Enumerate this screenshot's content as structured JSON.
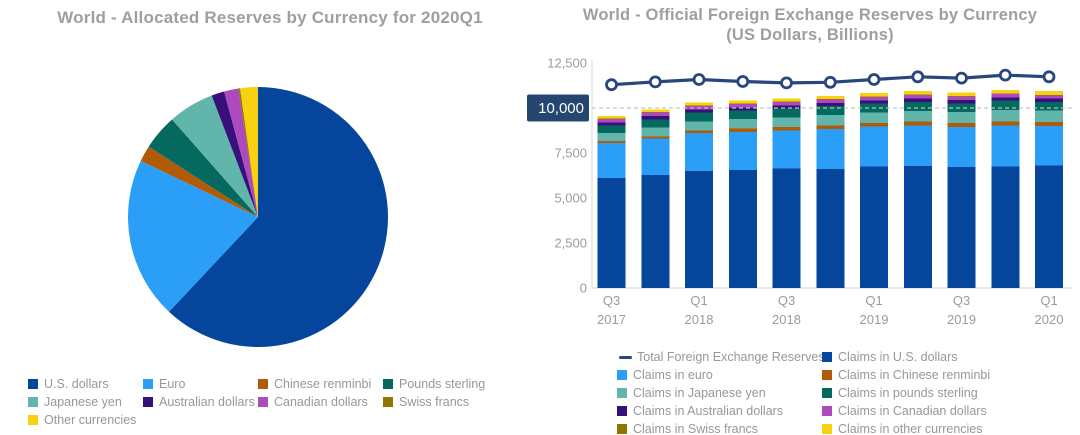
{
  "colors": {
    "title_gray": "#9aa0a4",
    "text_gray": "#95989b",
    "axis_text_gray": "#9b9b9b",
    "axis_line_gray": "#d9d9d9",
    "gridline_gray": "#c4c4c4",
    "badge_navy": "#24466f",
    "line_navy": "#27477e"
  },
  "left_chart": {
    "title": "World - Allocated Reserves by Currency for 2020Q1",
    "legend": [
      {
        "label": "U.S. dollars",
        "color": "#05459b"
      },
      {
        "label": "Euro",
        "color": "#2b9ff8"
      },
      {
        "label": "Chinese renminbi",
        "color": "#b15b08"
      },
      {
        "label": "Pounds sterling",
        "color": "#046a60"
      },
      {
        "label": "Japanese yen",
        "color": "#62b5aa"
      },
      {
        "label": "Australian dollars",
        "color": "#38107c"
      },
      {
        "label": "Canadian dollars",
        "color": "#ad4bbc"
      },
      {
        "label": "Swiss francs",
        "color": "#8f7700"
      },
      {
        "label": "Other currencies",
        "color": "#f8d20e"
      }
    ]
  },
  "right_chart": {
    "title_line1": "World - Official Foreign Exchange Reserves by Currency",
    "title_line2": "(US Dollars, Billions)",
    "y_axis": {
      "tick_labels": [
        "0",
        "2,500",
        "5,000",
        "7,500",
        "10,000",
        "12,500"
      ],
      "highlighted_label": "10,000"
    },
    "x_axis": {
      "tick_labels": [
        [
          "Q3",
          "2017"
        ],
        [
          "Q1",
          "2018"
        ],
        [
          "Q3",
          "2018"
        ],
        [
          "Q1",
          "2019"
        ],
        [
          "Q3",
          "2019"
        ],
        [
          "Q1",
          "2020"
        ]
      ],
      "tick_indices": [
        0,
        2,
        4,
        6,
        8,
        10
      ]
    },
    "legend_col1": [
      {
        "label": "Total Foreign Exchange Reserves",
        "color": "#27477e",
        "swatch": "line"
      },
      {
        "label": "Claims in euro",
        "color": "#2b9ff8",
        "swatch": "box"
      },
      {
        "label": "Claims in Japanese yen",
        "color": "#62b5aa",
        "swatch": "box"
      },
      {
        "label": "Claims in Australian dollars",
        "color": "#38107c",
        "swatch": "box"
      },
      {
        "label": "Claims in Swiss francs",
        "color": "#8f7700",
        "swatch": "box"
      }
    ],
    "legend_col2": [
      {
        "label": "Claims in U.S. dollars",
        "color": "#05459b",
        "swatch": "box"
      },
      {
        "label": "Claims in Chinese renminbi",
        "color": "#b15b08",
        "swatch": "box"
      },
      {
        "label": "Claims in pounds sterling",
        "color": "#046a60",
        "swatch": "box"
      },
      {
        "label": "Claims in Canadian dollars",
        "color": "#ad4bbc",
        "swatch": "box"
      },
      {
        "label": "Claims in other currencies",
        "color": "#f8d20e",
        "swatch": "box"
      }
    ]
  },
  "chart_data": [
    {
      "type": "pie",
      "title": "World - Allocated Reserves by Currency for 2020Q1",
      "direction": "clockwise",
      "start_angle": "top",
      "slices": [
        {
          "label": "U.S. dollars",
          "value": 62.0,
          "color": "#05459b"
        },
        {
          "label": "Euro",
          "value": 20.1,
          "color": "#2b9ff8"
        },
        {
          "label": "Chinese renminbi",
          "value": 2.0,
          "color": "#b15b08"
        },
        {
          "label": "Pounds sterling",
          "value": 4.4,
          "color": "#046a60"
        },
        {
          "label": "Japanese yen",
          "value": 5.7,
          "color": "#62b5aa"
        },
        {
          "label": "Australian dollars",
          "value": 1.6,
          "color": "#38107c"
        },
        {
          "label": "Canadian dollars",
          "value": 1.8,
          "color": "#ad4bbc"
        },
        {
          "label": "Swiss francs",
          "value": 0.2,
          "color": "#8f7700"
        },
        {
          "label": "Other currencies",
          "value": 2.2,
          "color": "#f8d20e"
        }
      ]
    },
    {
      "type": "bar",
      "subtype": "stacked-with-line",
      "title": "World - Official Foreign Exchange Reserves by Currency (US Dollars, Billions)",
      "categories": [
        "2017 Q3",
        "2017 Q4",
        "2018 Q1",
        "2018 Q2",
        "2018 Q3",
        "2018 Q4",
        "2019 Q1",
        "2019 Q2",
        "2019 Q3",
        "2019 Q4",
        "2020 Q1"
      ],
      "ylim": [
        0,
        12500
      ],
      "yticks": [
        0,
        2500,
        5000,
        7500,
        10000,
        12500
      ],
      "reference_line": {
        "value": 10000,
        "style": "dashed"
      },
      "grid": "off",
      "legend_position": "bottom",
      "series": [
        {
          "name": "Claims in U.S. dollars",
          "color": "#05459b",
          "values": [
            6125,
            6282,
            6499,
            6553,
            6630,
            6618,
            6739,
            6785,
            6725,
            6746,
            6794
          ]
        },
        {
          "name": "Claims in euro",
          "color": "#2b9ff8",
          "values": [
            1934,
            2019,
            2120,
            2123,
            2130,
            2218,
            2220,
            2243,
            2215,
            2280,
            2197
          ]
        },
        {
          "name": "Claims in Chinese renminbi",
          "color": "#b15b08",
          "values": [
            108,
            123,
            145,
            193,
            193,
            203,
            213,
            218,
            215,
            214,
            221
          ]
        },
        {
          "name": "Claims in Japanese yen",
          "color": "#62b5aa",
          "values": [
            432,
            490,
            491,
            520,
            532,
            572,
            580,
            597,
            613,
            653,
            639
          ]
        },
        {
          "name": "Claims in pounds sterling",
          "color": "#046a60",
          "values": [
            430,
            455,
            485,
            473,
            478,
            492,
            495,
            497,
            495,
            512,
            486
          ]
        },
        {
          "name": "Claims in Australian dollars",
          "color": "#38107c",
          "values": [
            173,
            180,
            180,
            178,
            180,
            180,
            180,
            186,
            183,
            189,
            179
          ]
        },
        {
          "name": "Claims in Canadian dollars",
          "color": "#ad4bbc",
          "values": [
            196,
            203,
            195,
            200,
            203,
            201,
            205,
            207,
            200,
            206,
            199
          ]
        },
        {
          "name": "Claims in Swiss francs",
          "color": "#8f7700",
          "values": [
            16,
            18,
            17,
            16,
            16,
            15,
            15,
            15,
            15,
            15,
            15
          ]
        },
        {
          "name": "Claims in other currencies",
          "color": "#f8d20e",
          "values": [
            152,
            160,
            170,
            170,
            175,
            180,
            185,
            190,
            190,
            199,
            201
          ]
        }
      ],
      "line_series": {
        "name": "Total Foreign Exchange Reserves",
        "color": "#27477e",
        "values": [
          11297,
          11448,
          11586,
          11475,
          11397,
          11430,
          11586,
          11734,
          11663,
          11826,
          11735
        ]
      }
    }
  ]
}
